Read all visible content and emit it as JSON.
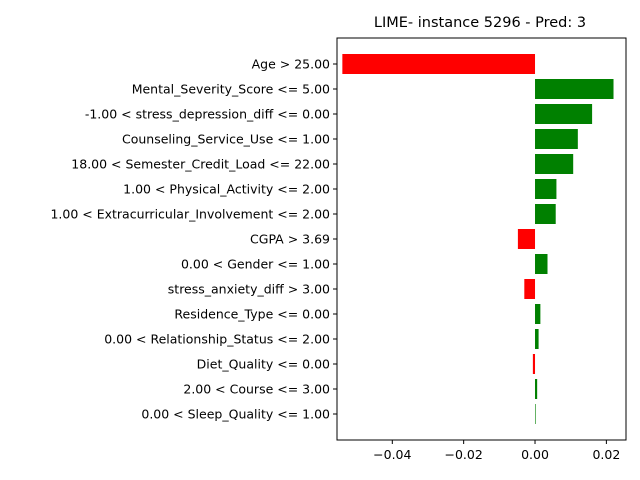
{
  "chart_data": {
    "type": "bar",
    "orientation": "horizontal",
    "title": "LIME- instance 5296 - Pred: 3",
    "xlabel": "",
    "ylabel": "",
    "xlim": [
      -0.0555,
      0.0255
    ],
    "xticks": [
      {
        "value": -0.04,
        "label": "−0.04"
      },
      {
        "value": -0.02,
        "label": "−0.02"
      },
      {
        "value": 0.0,
        "label": "0.00"
      },
      {
        "value": 0.02,
        "label": "0.02"
      }
    ],
    "positive_color": "#008000",
    "negative_color": "#ff0000",
    "grid": false,
    "bars": [
      {
        "label": "Age > 25.00",
        "value": -0.054
      },
      {
        "label": "Mental_Severity_Score <= 5.00",
        "value": 0.022
      },
      {
        "label": "-1.00 < stress_depression_diff <= 0.00",
        "value": 0.016
      },
      {
        "label": "Counseling_Service_Use <= 1.00",
        "value": 0.012
      },
      {
        "label": "18.00 < Semester_Credit_Load <= 22.00",
        "value": 0.0107
      },
      {
        "label": "1.00 < Physical_Activity <= 2.00",
        "value": 0.006
      },
      {
        "label": "1.00 < Extracurricular_Involvement <= 2.00",
        "value": 0.0058
      },
      {
        "label": "CGPA > 3.69",
        "value": -0.0048
      },
      {
        "label": "0.00 < Gender <= 1.00",
        "value": 0.0035
      },
      {
        "label": "stress_anxiety_diff > 3.00",
        "value": -0.003
      },
      {
        "label": "Residence_Type <= 0.00",
        "value": 0.0015
      },
      {
        "label": "0.00 < Relationship_Status <= 2.00",
        "value": 0.001
      },
      {
        "label": "Diet_Quality <= 0.00",
        "value": -0.0006
      },
      {
        "label": "2.00 < Course <= 3.00",
        "value": 0.0006
      },
      {
        "label": "0.00 < Sleep_Quality <= 1.00",
        "value": 0.0001
      }
    ]
  }
}
